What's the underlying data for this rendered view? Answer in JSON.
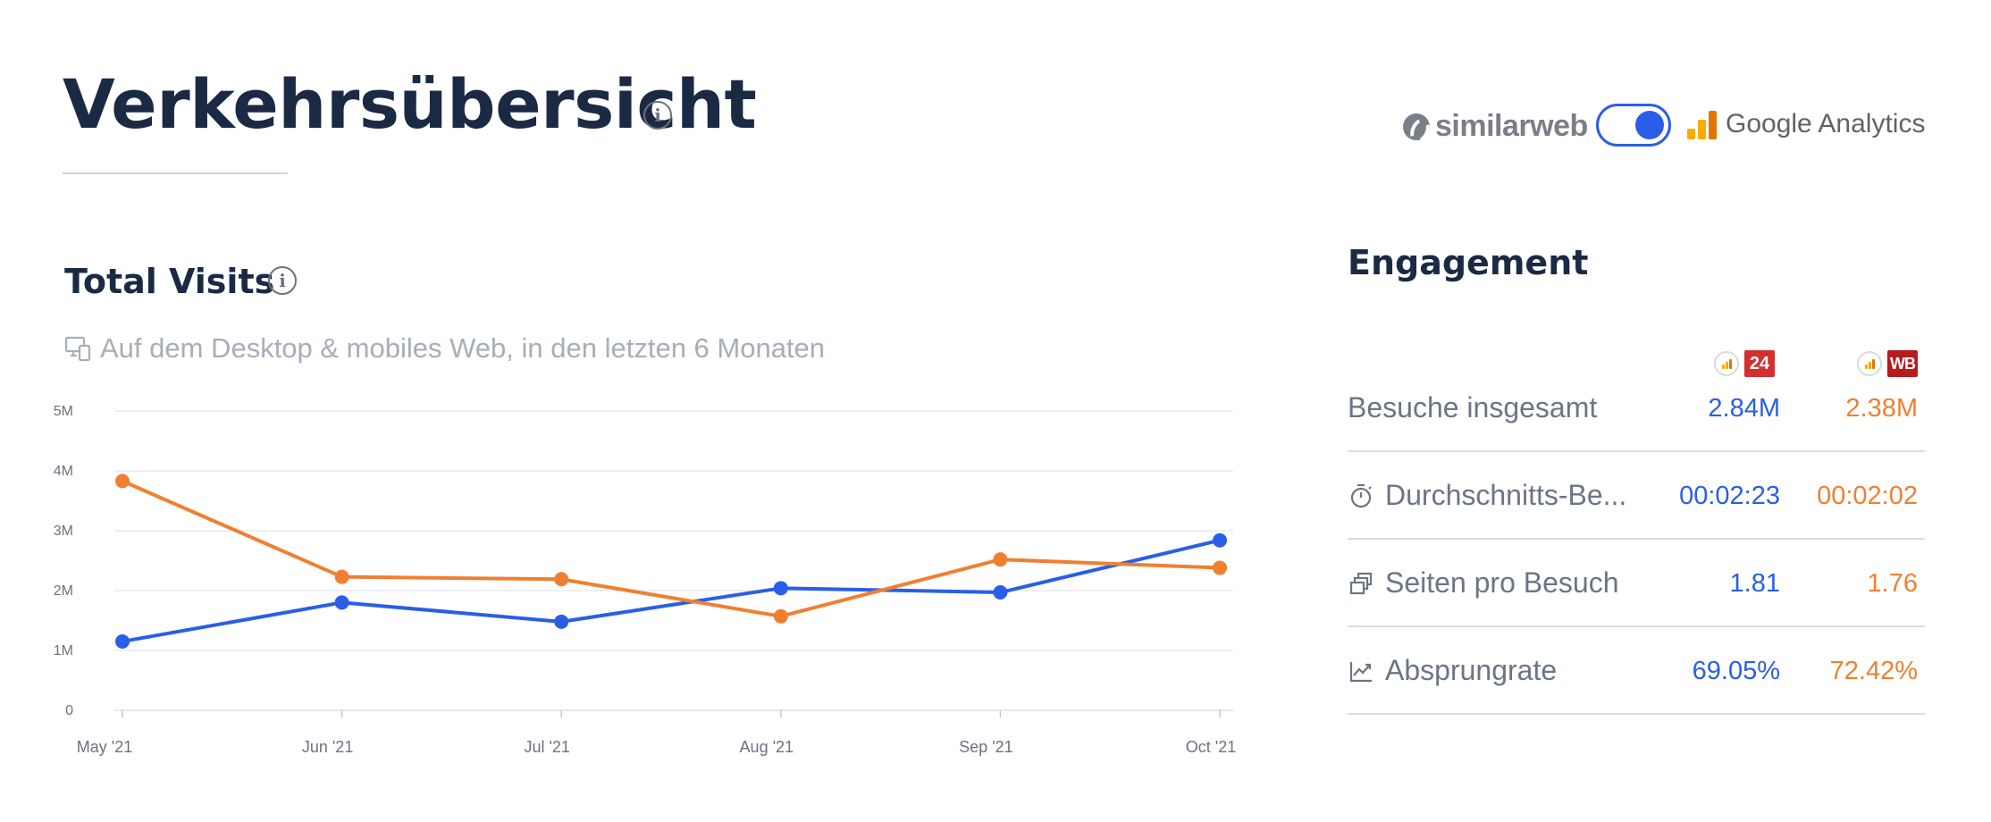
{
  "header": {
    "title": "Verkehrsübersicht",
    "info_glyph": "i",
    "source_left": "similarweb",
    "source_right": "Google Analytics",
    "toggle_on": true
  },
  "total_visits": {
    "title": "Total Visits",
    "info_glyph": "i",
    "subtitle": "Auf dem Desktop & mobiles Web, in den letzten 6 Monaten"
  },
  "colors": {
    "blue": "#2a5ee8",
    "orange": "#f07f32",
    "title": "#1b2a44",
    "grid": "#e8eaed",
    "muted": "#a7aeb8"
  },
  "chart_data": {
    "type": "line",
    "x": [
      "May '21",
      "Jun '21",
      "Jul '21",
      "Aug '21",
      "Sep '21",
      "Oct '21"
    ],
    "y_ticks": [
      "0",
      "1M",
      "2M",
      "3M",
      "4M",
      "5M"
    ],
    "ylim": [
      0,
      5000000
    ],
    "grid": true,
    "series": [
      {
        "color": "#2a5ee8",
        "values": [
          1150000,
          1800000,
          1480000,
          2040000,
          1970000,
          2840000
        ]
      },
      {
        "color": "#f07f32",
        "values": [
          3830000,
          2230000,
          2190000,
          1570000,
          2520000,
          2380000
        ]
      }
    ]
  },
  "engagement": {
    "title": "Engagement",
    "site_badges": [
      "24",
      "WB"
    ],
    "rows": [
      {
        "label": "Besuche insgesamt",
        "icon": "",
        "blue": "2.84M",
        "orange": "2.38M"
      },
      {
        "label": "Durchschnitts-Be...",
        "icon": "stopwatch-icon",
        "blue": "00:02:23",
        "orange": "00:02:02"
      },
      {
        "label": "Seiten pro Besuch",
        "icon": "pages-icon",
        "blue": "1.81",
        "orange": "1.76"
      },
      {
        "label": "Absprungrate",
        "icon": "bounce-icon",
        "blue": "69.05%",
        "orange": "72.42%"
      }
    ]
  }
}
